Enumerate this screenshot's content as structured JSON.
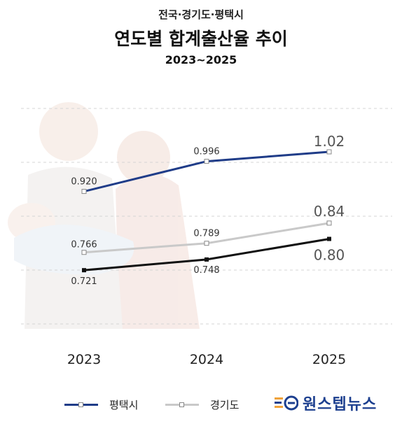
{
  "header": {
    "subtitle": "전국·경기도·평택시",
    "title": "연도별 합계출산율 추이",
    "period": "2023~2025"
  },
  "colors": {
    "pyeongtaek": "#1f3c88",
    "gyeonggi": "#c9c9c9",
    "national": "#111111"
  },
  "chart_data": {
    "type": "line",
    "categories": [
      "2023",
      "2024",
      "2025"
    ],
    "series": [
      {
        "key": "pyeongtaek",
        "name": "평택시",
        "values": [
          0.92,
          0.996,
          1.02
        ],
        "labels": [
          "0.920",
          "0.996",
          "1.02"
        ]
      },
      {
        "key": "gyeonggi",
        "name": "경기도",
        "values": [
          0.766,
          0.789,
          0.84
        ],
        "labels": [
          "0.766",
          "0.789",
          "0.84"
        ]
      },
      {
        "key": "national",
        "values": [
          0.721,
          0.748,
          0.8
        ],
        "labels": [
          "0.721",
          "0.748",
          "0.80"
        ]
      }
    ],
    "grid": true,
    "legend_position": "bottom"
  },
  "legend": {
    "items": [
      {
        "label": "평택시",
        "color": "#1f3c88"
      },
      {
        "label": "경기도",
        "color": "#c9c9c9"
      }
    ]
  },
  "brand": {
    "name": "원스텝뉴스"
  }
}
